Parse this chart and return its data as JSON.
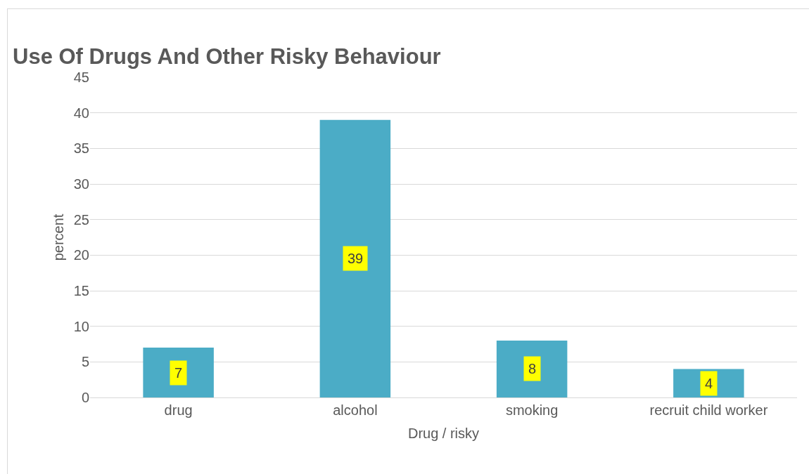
{
  "chart_data": {
    "type": "bar",
    "title": "Use Of Drugs And Other Risky Behaviour",
    "xlabel": "Drug / risky",
    "ylabel": "percent",
    "categories": [
      "drug",
      "alcohol",
      "smoking",
      "recruit child worker"
    ],
    "values": [
      7,
      39,
      8,
      4
    ],
    "color": "#4bacc6",
    "ylim": [
      0,
      45
    ],
    "yticks": [
      0,
      5,
      10,
      15,
      20,
      25,
      30,
      35,
      40,
      45
    ],
    "grid": "y",
    "legend": false,
    "data_labels": true
  }
}
